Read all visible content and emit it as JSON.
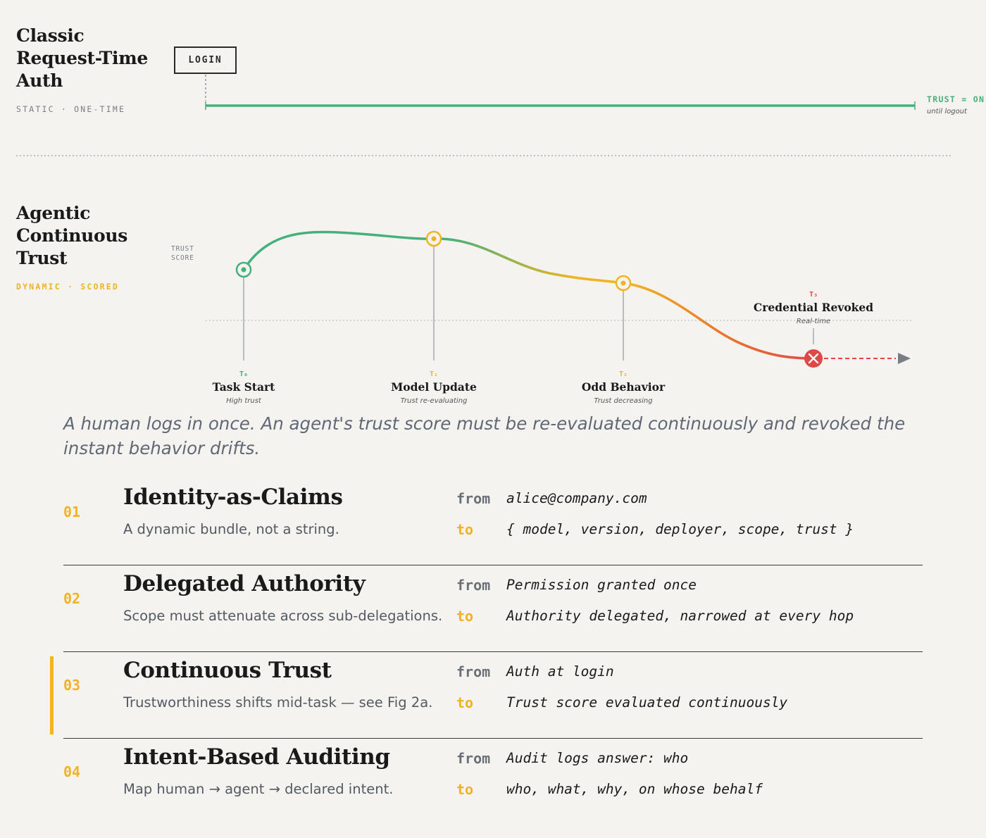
{
  "classic": {
    "title_line1": "Classic",
    "title_line2": "Request-Time",
    "title_line3": "Auth",
    "subtitle": "STATIC · ONE-TIME",
    "login_label": "LOGIN",
    "trust_label": "TRUST = ON",
    "trust_note": "until logout",
    "line_color": "#45b07a"
  },
  "agentic": {
    "title_line1": "Agentic",
    "title_line2": "Continuous",
    "title_line3": "Trust",
    "subtitle": "DYNAMIC · SCORED",
    "axis_label_line1": "TRUST",
    "axis_label_line2": "SCORE",
    "events": [
      {
        "tag": "T₀",
        "name": "Task Start",
        "note": "High trust",
        "color": "#45b07a"
      },
      {
        "tag": "T₁",
        "name": "Model Update",
        "note": "Trust re-evaluating",
        "color": "#f0b323"
      },
      {
        "tag": "T₂",
        "name": "Odd Behavior",
        "note": "Trust decreasing",
        "color": "#f0b323"
      },
      {
        "tag": "T₃",
        "name": "Credential Revoked",
        "note": "Real-time",
        "color": "#e04848"
      }
    ],
    "colors": {
      "high": "#45b07a",
      "mid": "#f0b323",
      "low": "#e04848"
    }
  },
  "caption": "A human logs in once. An agent's trust score must be re-evaluated continuously and revoked the instant behavior drifts.",
  "rows": [
    {
      "num": "01",
      "title": "Identity-as-Claims",
      "desc": "A dynamic bundle, not a string.",
      "from_label": "from",
      "from": "alice@company.com",
      "to_label": "to",
      "to": "{ model, version, deployer, scope, trust }"
    },
    {
      "num": "02",
      "title": "Delegated Authority",
      "desc": "Scope must attenuate across sub-delegations.",
      "from_label": "from",
      "from": "Permission granted once",
      "to_label": "to",
      "to": "Authority delegated, narrowed at every hop"
    },
    {
      "num": "03",
      "title": "Continuous Trust",
      "desc": "Trustworthiness shifts mid-task — see Fig 2a.",
      "from_label": "from",
      "from": "Auth at login",
      "to_label": "to",
      "to": "Trust score evaluated continuously"
    },
    {
      "num": "04",
      "title": "Intent-Based Auditing",
      "desc": "Map human → agent → declared intent.",
      "from_label": "from",
      "from": "Audit logs answer: who",
      "to_label": "to",
      "to": "who, what, why, on whose behalf"
    }
  ],
  "accent_color": "#f5b41c"
}
